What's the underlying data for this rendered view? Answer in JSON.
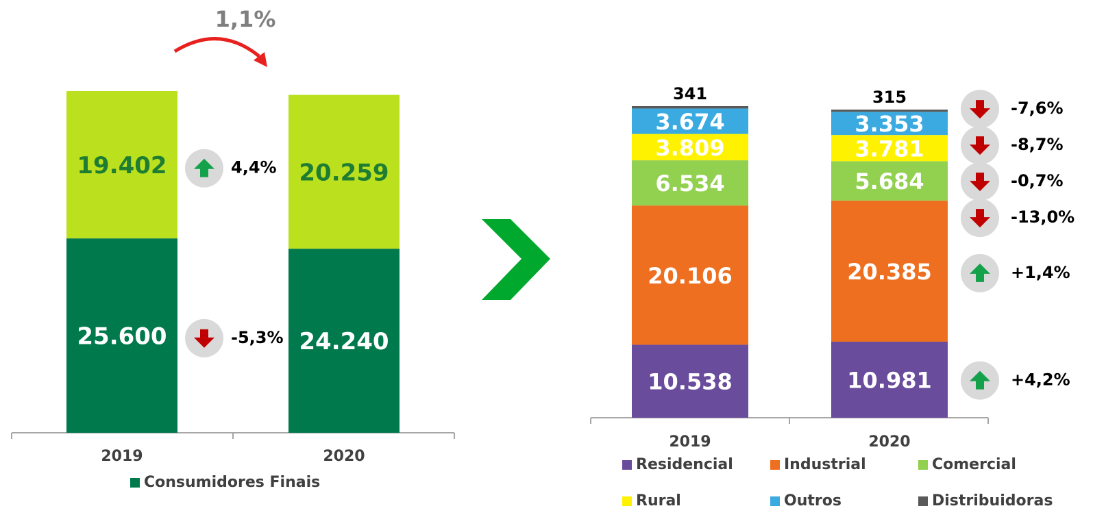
{
  "chart_data": [
    {
      "type": "bar",
      "stacked": true,
      "annotation": "1,1%",
      "categories": [
        "2019",
        "2020"
      ],
      "series": [
        {
          "name": "Consumidores Finais",
          "color": "#007a4d",
          "label_color": "#ffffff",
          "values": [
            25600,
            24240
          ],
          "value_labels": [
            "25.600",
            "24.240"
          ],
          "change": "-5,3%"
        },
        {
          "color": "#bbe01e",
          "label_color": "#1e7d32",
          "values": [
            19402,
            20259
          ],
          "value_labels": [
            "19.402",
            "20.259"
          ],
          "change": "4,4%"
        }
      ]
    },
    {
      "type": "bar",
      "stacked": true,
      "categories": [
        "2019",
        "2020"
      ],
      "series": [
        {
          "name": "Residencial",
          "color": "#6a4c9c",
          "label_color": "#ffffff",
          "values": [
            10538,
            10981
          ],
          "value_labels": [
            "10.538",
            "10.981"
          ],
          "change": "+4,2%"
        },
        {
          "name": "Industrial",
          "color": "#ee6f1f",
          "label_color": "#ffffff",
          "values": [
            20106,
            20385
          ],
          "value_labels": [
            "20.106",
            "20.385"
          ],
          "change": "+1,4%"
        },
        {
          "name": "Comercial",
          "color": "#92d050",
          "label_color": "#ffffff",
          "values": [
            6534,
            5684
          ],
          "value_labels": [
            "6.534",
            "5.684"
          ],
          "change": "-13,0%"
        },
        {
          "name": "Rural",
          "color": "#fff200",
          "label_color": "#ffffff",
          "values": [
            3809,
            3781
          ],
          "value_labels": [
            "3.809",
            "3.781"
          ],
          "change": "-0,7%"
        },
        {
          "name": "Outros",
          "color": "#3aaae0",
          "label_color": "#ffffff",
          "values": [
            3674,
            3353
          ],
          "value_labels": [
            "3.674",
            "3.353"
          ],
          "change": "-8,7%"
        },
        {
          "name": "Distribuidoras",
          "color": "#595959",
          "label_color": "#000000",
          "label_position": "outside",
          "values": [
            341,
            315
          ],
          "change": "-7,6%"
        }
      ]
    }
  ]
}
